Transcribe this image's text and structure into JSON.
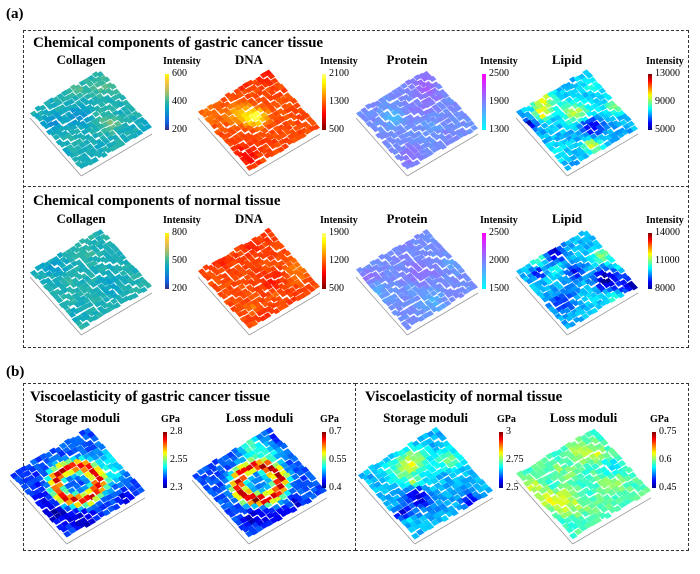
{
  "panel_a": {
    "letter": "(a)",
    "rows": [
      {
        "title": "Chemical components of gastric cancer tissue",
        "maps": [
          {
            "label": "Collagen",
            "unit": "Intensity",
            "ticks": [
              "600",
              "400",
              "200"
            ],
            "colormap": "parula"
          },
          {
            "label": "DNA",
            "unit": "Intensity",
            "ticks": [
              "2100",
              "1300",
              "500"
            ],
            "colormap": "hot"
          },
          {
            "label": "Protein",
            "unit": "Intensity",
            "ticks": [
              "2500",
              "1900",
              "1300"
            ],
            "colormap": "cool"
          },
          {
            "label": "Lipid",
            "unit": "Intensity",
            "ticks": [
              "13000",
              "9000",
              "5000"
            ],
            "colormap": "jet"
          }
        ]
      },
      {
        "title": "Chemical components of normal tissue",
        "maps": [
          {
            "label": "Collagen",
            "unit": "Intensity",
            "ticks": [
              "800",
              "500",
              "200"
            ],
            "colormap": "parula"
          },
          {
            "label": "DNA",
            "unit": "Intensity",
            "ticks": [
              "1900",
              "1200",
              "500"
            ],
            "colormap": "hot"
          },
          {
            "label": "Protein",
            "unit": "Intensity",
            "ticks": [
              "2500",
              "2000",
              "1500"
            ],
            "colormap": "cool"
          },
          {
            "label": "Lipid",
            "unit": "Intensity",
            "ticks": [
              "14000",
              "11000",
              "8000"
            ],
            "colormap": "jet"
          }
        ]
      }
    ]
  },
  "panel_b": {
    "letter": "(b)",
    "groups": [
      {
        "title": "Viscoelasticity of gastric cancer tissue",
        "maps": [
          {
            "label": "Storage moduli",
            "unit": "GPa",
            "ticks": [
              "2.8",
              "2.55",
              "2.3"
            ],
            "colormap": "jet"
          },
          {
            "label": "Loss moduli",
            "unit": "GPa",
            "ticks": [
              "0.7",
              "0.55",
              "0.4"
            ],
            "colormap": "jet"
          }
        ]
      },
      {
        "title": "Viscoelasticity of normal tissue",
        "maps": [
          {
            "label": "Storage moduli",
            "unit": "GPa",
            "ticks": [
              "3",
              "2.75",
              "2.5"
            ],
            "colormap": "jet"
          },
          {
            "label": "Loss moduli",
            "unit": "GPa",
            "ticks": [
              "0.75",
              "0.6",
              "0.45"
            ],
            "colormap": "jet"
          }
        ]
      }
    ]
  },
  "colormaps": {
    "parula": [
      "#352a87",
      "#0f5cdd",
      "#1481d6",
      "#06a4ca",
      "#2eb7a4",
      "#87bf77",
      "#d1bb59",
      "#fec832",
      "#f9fb0e"
    ],
    "hot": [
      "#800000",
      "#c00000",
      "#ff0000",
      "#ff4000",
      "#ff8000",
      "#ffc000",
      "#ffff00",
      "#ffff80"
    ],
    "cool": [
      "#00ffff",
      "#40bfff",
      "#8080ff",
      "#bf40ff",
      "#ff00ff"
    ],
    "jet": [
      "#00008f",
      "#0000ff",
      "#0080ff",
      "#00ffff",
      "#80ff80",
      "#ffff00",
      "#ff8000",
      "#ff0000",
      "#800000"
    ]
  }
}
